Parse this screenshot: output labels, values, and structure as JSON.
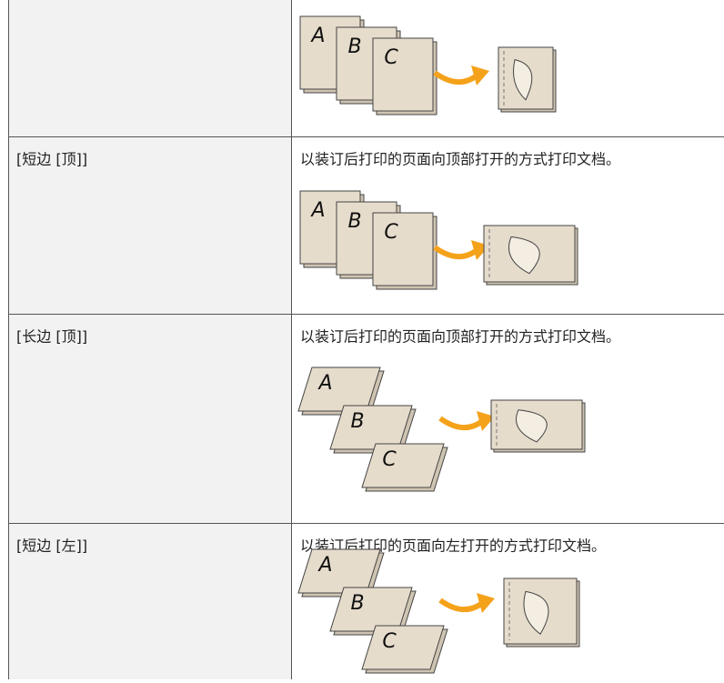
{
  "table": {
    "rows": [
      {
        "setting": "[短边 [顶]]",
        "description": "以装订后打印的页面向顶部打开的方式打印文档。"
      },
      {
        "setting": "[长边 [顶]]",
        "description": "以装订后打印的页面向顶部打开的方式打印文档。"
      },
      {
        "setting": "[短边 [左]]",
        "description": "以装订后打印的页面向左打开的方式打印文档。"
      }
    ]
  },
  "illustration_letters": [
    "A",
    "B",
    "C"
  ]
}
